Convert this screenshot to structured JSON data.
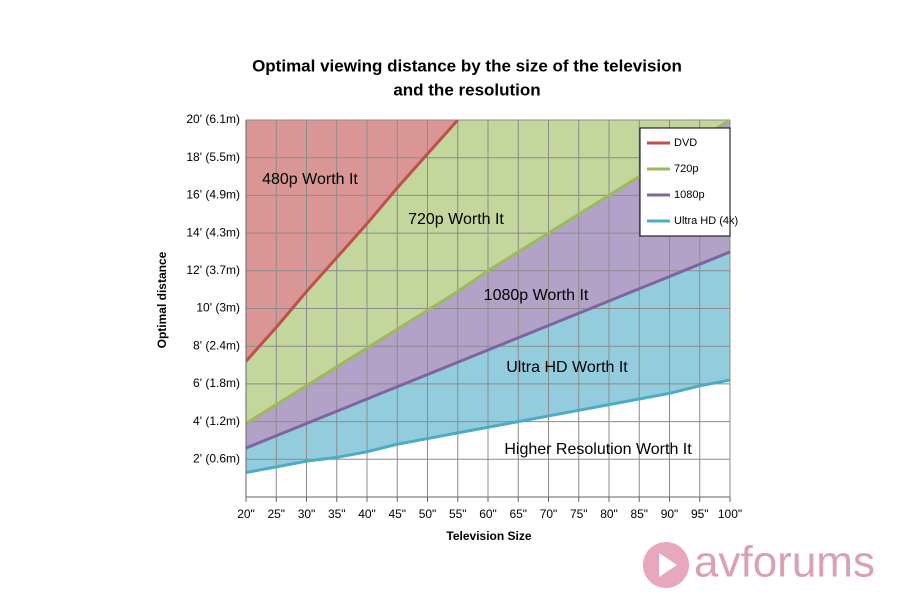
{
  "chart_data": {
    "type": "line",
    "title": [
      "Optimal viewing distance by the size of the television",
      "and the resolution"
    ],
    "xlabel": "Television Size",
    "ylabel": "Optimal distance",
    "x": [
      20,
      25,
      30,
      35,
      40,
      45,
      50,
      55,
      60,
      65,
      70,
      75,
      80,
      85,
      90,
      95,
      100
    ],
    "xlim": [
      20,
      100
    ],
    "xticks": [
      {
        "value": 20,
        "label": "20\""
      },
      {
        "value": 25,
        "label": "25\""
      },
      {
        "value": 30,
        "label": "30\""
      },
      {
        "value": 35,
        "label": "35\""
      },
      {
        "value": 40,
        "label": "40\""
      },
      {
        "value": 45,
        "label": "45\""
      },
      {
        "value": 50,
        "label": "50\""
      },
      {
        "value": 55,
        "label": "55\""
      },
      {
        "value": 60,
        "label": "60\""
      },
      {
        "value": 65,
        "label": "65\""
      },
      {
        "value": 70,
        "label": "70\""
      },
      {
        "value": 75,
        "label": "75\""
      },
      {
        "value": 80,
        "label": "80\""
      },
      {
        "value": 85,
        "label": "85\""
      },
      {
        "value": 90,
        "label": "90\""
      },
      {
        "value": 95,
        "label": "95\""
      },
      {
        "value": 100,
        "label": "100\""
      }
    ],
    "ylim": [
      0,
      20
    ],
    "yticks": [
      {
        "value": 2,
        "label": "2' (0.6m)"
      },
      {
        "value": 4,
        "label": "4' (1.2m)"
      },
      {
        "value": 6,
        "label": "6' (1.8m)"
      },
      {
        "value": 8,
        "label": "8' (2.4m)"
      },
      {
        "value": 10,
        "label": "10' (3m)"
      },
      {
        "value": 12,
        "label": "12' (3.7m)"
      },
      {
        "value": 14,
        "label": "14' (4.3m)"
      },
      {
        "value": 16,
        "label": "16' (4.9m)"
      },
      {
        "value": 18,
        "label": "18' (5.5m)"
      },
      {
        "value": 20,
        "label": "20' (6.1m)"
      }
    ],
    "grid": true,
    "legend": "top-right",
    "series": [
      {
        "name": "DVD",
        "color": "#c0504d",
        "fill": "#d99694",
        "values": [
          7.2,
          9.0,
          10.9,
          12.7,
          14.5,
          16.4,
          18.2,
          20,
          null,
          null,
          null,
          null,
          null,
          null,
          null,
          null,
          null
        ]
      },
      {
        "name": "720p",
        "color": "#9bbb59",
        "fill": "#c3d69b",
        "values": [
          3.9,
          4.9,
          5.9,
          6.9,
          7.9,
          8.9,
          9.9,
          10.9,
          12.0,
          13.0,
          14.0,
          15.0,
          16.0,
          17.0,
          18.0,
          19.0,
          20.0
        ]
      },
      {
        "name": "1080p",
        "color": "#8064a2",
        "fill": "#b3a2c7",
        "values": [
          2.6,
          3.25,
          3.9,
          4.55,
          5.2,
          5.85,
          6.5,
          7.15,
          7.8,
          8.45,
          9.1,
          9.75,
          10.4,
          11.05,
          11.7,
          12.35,
          13.0
        ]
      },
      {
        "name": "Ultra HD (4k)",
        "color": "#4bacc6",
        "fill": "#93cddd",
        "values": [
          1.3,
          1.6,
          1.9,
          2.1,
          2.4,
          2.8,
          3.1,
          3.4,
          3.7,
          4.0,
          4.3,
          4.6,
          4.9,
          5.2,
          5.5,
          5.9,
          6.2
        ]
      }
    ],
    "annotations": [
      "480p Worth It",
      "720p Worth It",
      "1080p Worth It",
      "Ultra HD Worth It",
      "Higher Resolution Worth It"
    ],
    "watermark": "avforums"
  }
}
